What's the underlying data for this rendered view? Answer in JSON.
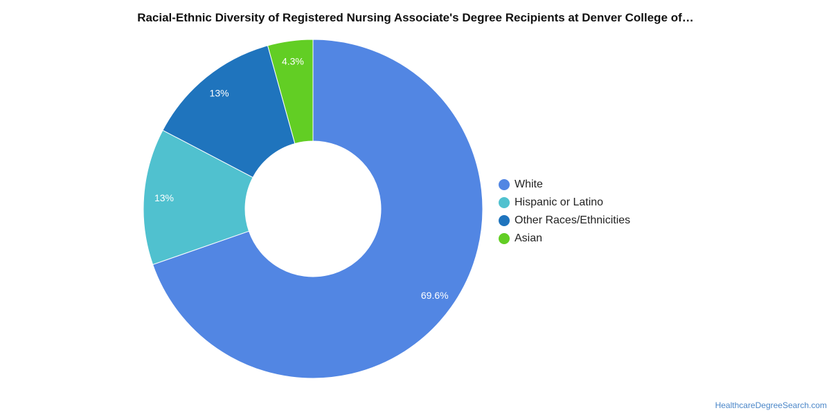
{
  "chart_data": {
    "type": "pie",
    "title": "Racial-Ethnic Diversity of Registered Nursing Associate's Degree Recipients at Denver College of…",
    "donut": true,
    "legend_position": "right",
    "slices": [
      {
        "label": "White",
        "value": 69.6,
        "display": "69.6%",
        "color": "#5286e3"
      },
      {
        "label": "Hispanic or Latino",
        "value": 13,
        "display": "13%",
        "color": "#50c1cf"
      },
      {
        "label": "Other Races/Ethnicities",
        "value": 13,
        "display": "13%",
        "color": "#1f74bd"
      },
      {
        "label": "Asian",
        "value": 4.3,
        "display": "4.3%",
        "color": "#62ce24"
      }
    ]
  },
  "watermark": "HealthcareDegreeSearch.com"
}
